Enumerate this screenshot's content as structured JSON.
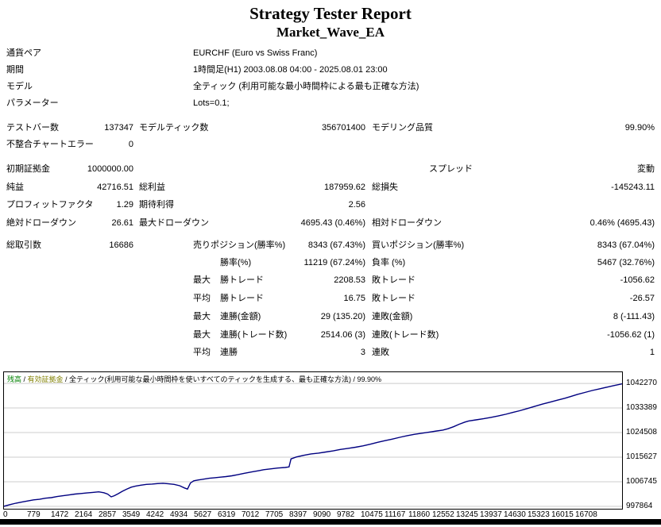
{
  "header": {
    "title": "Strategy Tester Report",
    "subtitle": "Market_Wave_EA"
  },
  "stats": {
    "rows": [
      {
        "cells": [
          {
            "t": "通貨ペア",
            "k": "l1"
          },
          {
            "t": "EURCHF (Euro vs Swiss Franc)",
            "k": "p1"
          }
        ]
      },
      {
        "cells": [
          {
            "t": "期間",
            "k": "l1"
          },
          {
            "t": "1時間足(H1) 2003.08.08 04:00 - 2025.08.01 23:00",
            "k": "p1"
          }
        ]
      },
      {
        "cells": [
          {
            "t": "モデル",
            "k": "l1"
          },
          {
            "t": "全ティック (利用可能な最小時間枠による最も正確な方法)",
            "k": "p1"
          }
        ]
      },
      {
        "cells": [
          {
            "t": "パラメーター",
            "k": "l1"
          },
          {
            "t": "Lots=0.1;",
            "k": "p1"
          }
        ]
      },
      {
        "cells": [
          {
            "t": "テストバー数",
            "k": "l1"
          },
          {
            "t": "137347",
            "k": "v1"
          },
          {
            "t": "モデルティック数",
            "k": "l2"
          },
          {
            "t": "356701400",
            "k": "v2"
          },
          {
            "t": "モデリング品質",
            "k": "l3"
          },
          {
            "t": "99.90%",
            "k": "v3"
          }
        ]
      },
      {
        "cells": [
          {
            "t": "不整合チャートエラー",
            "k": "l1"
          },
          {
            "t": "0",
            "k": "v1"
          }
        ]
      },
      {
        "cells": [
          {
            "t": "初期証拠金",
            "k": "l1"
          },
          {
            "t": "1000000.00",
            "k": "v1"
          },
          {
            "t": "スプレッド",
            "k": "l3s"
          },
          {
            "t": "変動",
            "k": "v3"
          }
        ]
      },
      {
        "cells": [
          {
            "t": "純益",
            "k": "l1"
          },
          {
            "t": "42716.51",
            "k": "v1"
          },
          {
            "t": "総利益",
            "k": "l2"
          },
          {
            "t": "187959.62",
            "k": "v2"
          },
          {
            "t": "総損失",
            "k": "l3"
          },
          {
            "t": "-145243.11",
            "k": "v3"
          }
        ]
      },
      {
        "cells": [
          {
            "t": "プロフィットファクタ",
            "k": "l1"
          },
          {
            "t": "1.29",
            "k": "v1"
          },
          {
            "t": "期待利得",
            "k": "l2"
          },
          {
            "t": "2.56",
            "k": "v2"
          }
        ]
      },
      {
        "cells": [
          {
            "t": "絶対ドローダウン",
            "k": "l1"
          },
          {
            "t": "26.61",
            "k": "v1"
          },
          {
            "t": "最大ドローダウン",
            "k": "l2"
          },
          {
            "t": "4695.43 (0.46%)",
            "k": "v2"
          },
          {
            "t": "相対ドローダウン",
            "k": "l3"
          },
          {
            "t": "0.46% (4695.43)",
            "k": "v3"
          }
        ]
      },
      {
        "cells": [
          {
            "t": "総取引数",
            "k": "l1"
          },
          {
            "t": "16686",
            "k": "v1"
          },
          {
            "t": "売りポジション(勝率%)",
            "k": "l2b"
          },
          {
            "t": "8343 (67.43%)",
            "k": "v2"
          },
          {
            "t": "買いポジション(勝率%)",
            "k": "l3"
          },
          {
            "t": "8343 (67.04%)",
            "k": "v3"
          }
        ]
      },
      {
        "cells": [
          {
            "t": "勝率(%)",
            "k": "sub"
          },
          {
            "t": "11219 (67.24%)",
            "k": "v2"
          },
          {
            "t": "負率 (%)",
            "k": "l3"
          },
          {
            "t": "5467 (32.76%)",
            "k": "v3"
          }
        ]
      },
      {
        "cells": [
          {
            "t": "最大",
            "k": "q"
          },
          {
            "t": "勝トレード",
            "k": "sub"
          },
          {
            "t": "2208.53",
            "k": "v2"
          },
          {
            "t": "敗トレード",
            "k": "l3"
          },
          {
            "t": "-1056.62",
            "k": "v3"
          }
        ]
      },
      {
        "cells": [
          {
            "t": "平均",
            "k": "q"
          },
          {
            "t": "勝トレード",
            "k": "sub"
          },
          {
            "t": "16.75",
            "k": "v2"
          },
          {
            "t": "敗トレード",
            "k": "l3"
          },
          {
            "t": "-26.57",
            "k": "v3"
          }
        ]
      },
      {
        "cells": [
          {
            "t": "最大",
            "k": "q"
          },
          {
            "t": "連勝(金額)",
            "k": "sub"
          },
          {
            "t": "29 (135.20)",
            "k": "v2"
          },
          {
            "t": "連敗(金額)",
            "k": "l3"
          },
          {
            "t": "8 (-111.43)",
            "k": "v3"
          }
        ]
      },
      {
        "cells": [
          {
            "t": "最大",
            "k": "q"
          },
          {
            "t": "連勝(トレード数)",
            "k": "sub"
          },
          {
            "t": "2514.06 (3)",
            "k": "v2"
          },
          {
            "t": "連敗(トレード数)",
            "k": "l3"
          },
          {
            "t": "-1056.62 (1)",
            "k": "v3"
          }
        ]
      },
      {
        "cells": [
          {
            "t": "平均",
            "k": "q"
          },
          {
            "t": "連勝",
            "k": "sub"
          },
          {
            "t": "3",
            "k": "v2"
          },
          {
            "t": "連敗",
            "k": "l3"
          },
          {
            "t": "1",
            "k": "v3"
          }
        ]
      }
    ]
  },
  "chart_data": {
    "type": "line",
    "legend_parts": [
      {
        "text": "残高",
        "color": "#008000"
      },
      {
        "text": " / ",
        "color": "#000000"
      },
      {
        "text": "有効証拠金",
        "color": "#808000"
      },
      {
        "text": " / 全ティック(利用可能な最小時間枠を使いすべてのティックを生成する、最も正確な方法) / 99.90%",
        "color": "#000000"
      }
    ],
    "xlim": [
      0,
      16708
    ],
    "ylim": [
      997000,
      1046300
    ],
    "x_ticks": [
      "0",
      "779",
      "1472",
      "2164",
      "2857",
      "3549",
      "4242",
      "4934",
      "5627",
      "6319",
      "7012",
      "7705",
      "8397",
      "9090",
      "9782",
      "10475",
      "11167",
      "11860",
      "12552",
      "13245",
      "13937",
      "14630",
      "15323",
      "16015",
      "16708"
    ],
    "y_ticks": [
      1042270,
      1033389,
      1024508,
      1015627,
      1006745,
      997864
    ],
    "grid": true,
    "grid_color": "#cccccc",
    "series": [
      {
        "name": "残高",
        "color": "#000080",
        "points": [
          [
            0,
            997900
          ],
          [
            160,
            998500
          ],
          [
            320,
            999000
          ],
          [
            480,
            999400
          ],
          [
            640,
            999800
          ],
          [
            800,
            1000200
          ],
          [
            960,
            1000400
          ],
          [
            1120,
            1000800
          ],
          [
            1280,
            1001000
          ],
          [
            1440,
            1001400
          ],
          [
            1600,
            1001700
          ],
          [
            1760,
            1002000
          ],
          [
            1920,
            1002300
          ],
          [
            2080,
            1002500
          ],
          [
            2240,
            1002700
          ],
          [
            2400,
            1002900
          ],
          [
            2560,
            1003100
          ],
          [
            2700,
            1002800
          ],
          [
            2800,
            1002300
          ],
          [
            2900,
            1001300
          ],
          [
            2980,
            1001700
          ],
          [
            3080,
            1002400
          ],
          [
            3200,
            1003300
          ],
          [
            3320,
            1004100
          ],
          [
            3440,
            1004800
          ],
          [
            3560,
            1005200
          ],
          [
            3700,
            1005500
          ],
          [
            3850,
            1005800
          ],
          [
            4000,
            1005900
          ],
          [
            4150,
            1006100
          ],
          [
            4300,
            1006200
          ],
          [
            4450,
            1006000
          ],
          [
            4600,
            1005800
          ],
          [
            4750,
            1005300
          ],
          [
            4880,
            1004500
          ],
          [
            4960,
            1004100
          ],
          [
            5040,
            1006300
          ],
          [
            5130,
            1007100
          ],
          [
            5260,
            1007400
          ],
          [
            5400,
            1007700
          ],
          [
            5550,
            1008000
          ],
          [
            5700,
            1008200
          ],
          [
            5850,
            1008400
          ],
          [
            6000,
            1008600
          ],
          [
            6160,
            1008900
          ],
          [
            6320,
            1009300
          ],
          [
            6500,
            1009800
          ],
          [
            6700,
            1010300
          ],
          [
            6900,
            1010800
          ],
          [
            7020,
            1011100
          ],
          [
            7200,
            1011400
          ],
          [
            7400,
            1011700
          ],
          [
            7600,
            1011900
          ],
          [
            7705,
            1012100
          ],
          [
            7760,
            1015000
          ],
          [
            7900,
            1015700
          ],
          [
            8100,
            1016300
          ],
          [
            8300,
            1016800
          ],
          [
            8500,
            1017100
          ],
          [
            8700,
            1017500
          ],
          [
            8900,
            1017900
          ],
          [
            9090,
            1018400
          ],
          [
            9300,
            1018800
          ],
          [
            9500,
            1019200
          ],
          [
            9700,
            1019700
          ],
          [
            9900,
            1020300
          ],
          [
            10100,
            1021000
          ],
          [
            10300,
            1021600
          ],
          [
            10480,
            1022100
          ],
          [
            10700,
            1022800
          ],
          [
            10900,
            1023400
          ],
          [
            11100,
            1023900
          ],
          [
            11300,
            1024300
          ],
          [
            11500,
            1024700
          ],
          [
            11700,
            1025100
          ],
          [
            11860,
            1025400
          ],
          [
            12000,
            1025900
          ],
          [
            12150,
            1026600
          ],
          [
            12300,
            1027500
          ],
          [
            12460,
            1028300
          ],
          [
            12560,
            1028700
          ],
          [
            12760,
            1029100
          ],
          [
            12960,
            1029500
          ],
          [
            13160,
            1030000
          ],
          [
            13360,
            1030500
          ],
          [
            13560,
            1031100
          ],
          [
            13760,
            1031800
          ],
          [
            13940,
            1032400
          ],
          [
            14150,
            1033200
          ],
          [
            14350,
            1034000
          ],
          [
            14560,
            1034800
          ],
          [
            14760,
            1035500
          ],
          [
            14960,
            1036200
          ],
          [
            15160,
            1036900
          ],
          [
            15330,
            1037600
          ],
          [
            15500,
            1038300
          ],
          [
            15700,
            1039000
          ],
          [
            15900,
            1039700
          ],
          [
            16100,
            1040300
          ],
          [
            16300,
            1040900
          ],
          [
            16500,
            1041500
          ],
          [
            16708,
            1042100
          ]
        ]
      }
    ]
  }
}
